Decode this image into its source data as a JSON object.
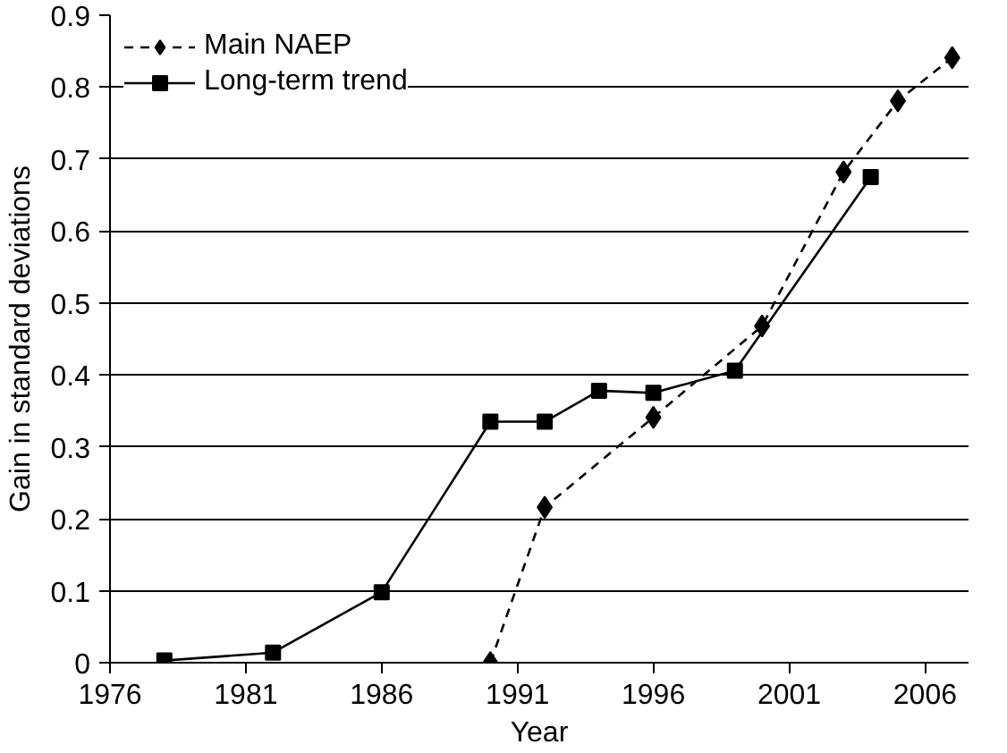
{
  "chart_data": {
    "type": "line",
    "xlabel": "Year",
    "ylabel": "Gain in standard deviations",
    "xlim": [
      1976,
      2007.6
    ],
    "ylim": [
      0,
      0.9
    ],
    "xticks": [
      1976,
      1981,
      1986,
      1991,
      1996,
      2001,
      2006
    ],
    "yticks": [
      {
        "value": 0,
        "label": "0"
      },
      0.1,
      0.2,
      0.3,
      0.4,
      0.5,
      0.6,
      0.7,
      0.8,
      0.9
    ],
    "grid": "y",
    "legend": "top left",
    "series": [
      {
        "name": "Main NAEP",
        "color": "#000000",
        "marker": "diamond",
        "line_style": "dashed",
        "x": [
          1990,
          1992,
          1996,
          2000,
          2003,
          2005,
          2007
        ],
        "values": [
          0,
          0.216,
          0.341,
          0.468,
          0.682,
          0.781,
          0.841
        ]
      },
      {
        "name": "Long-term trend",
        "color": "#000000",
        "marker": "square",
        "line_style": "solid",
        "x": [
          1978,
          1982,
          1986,
          1990,
          1992,
          1994,
          1996,
          1999,
          2004
        ],
        "values": [
          0.003,
          0.014,
          0.098,
          0.335,
          0.335,
          0.378,
          0.375,
          0.406,
          0.675
        ]
      }
    ]
  }
}
